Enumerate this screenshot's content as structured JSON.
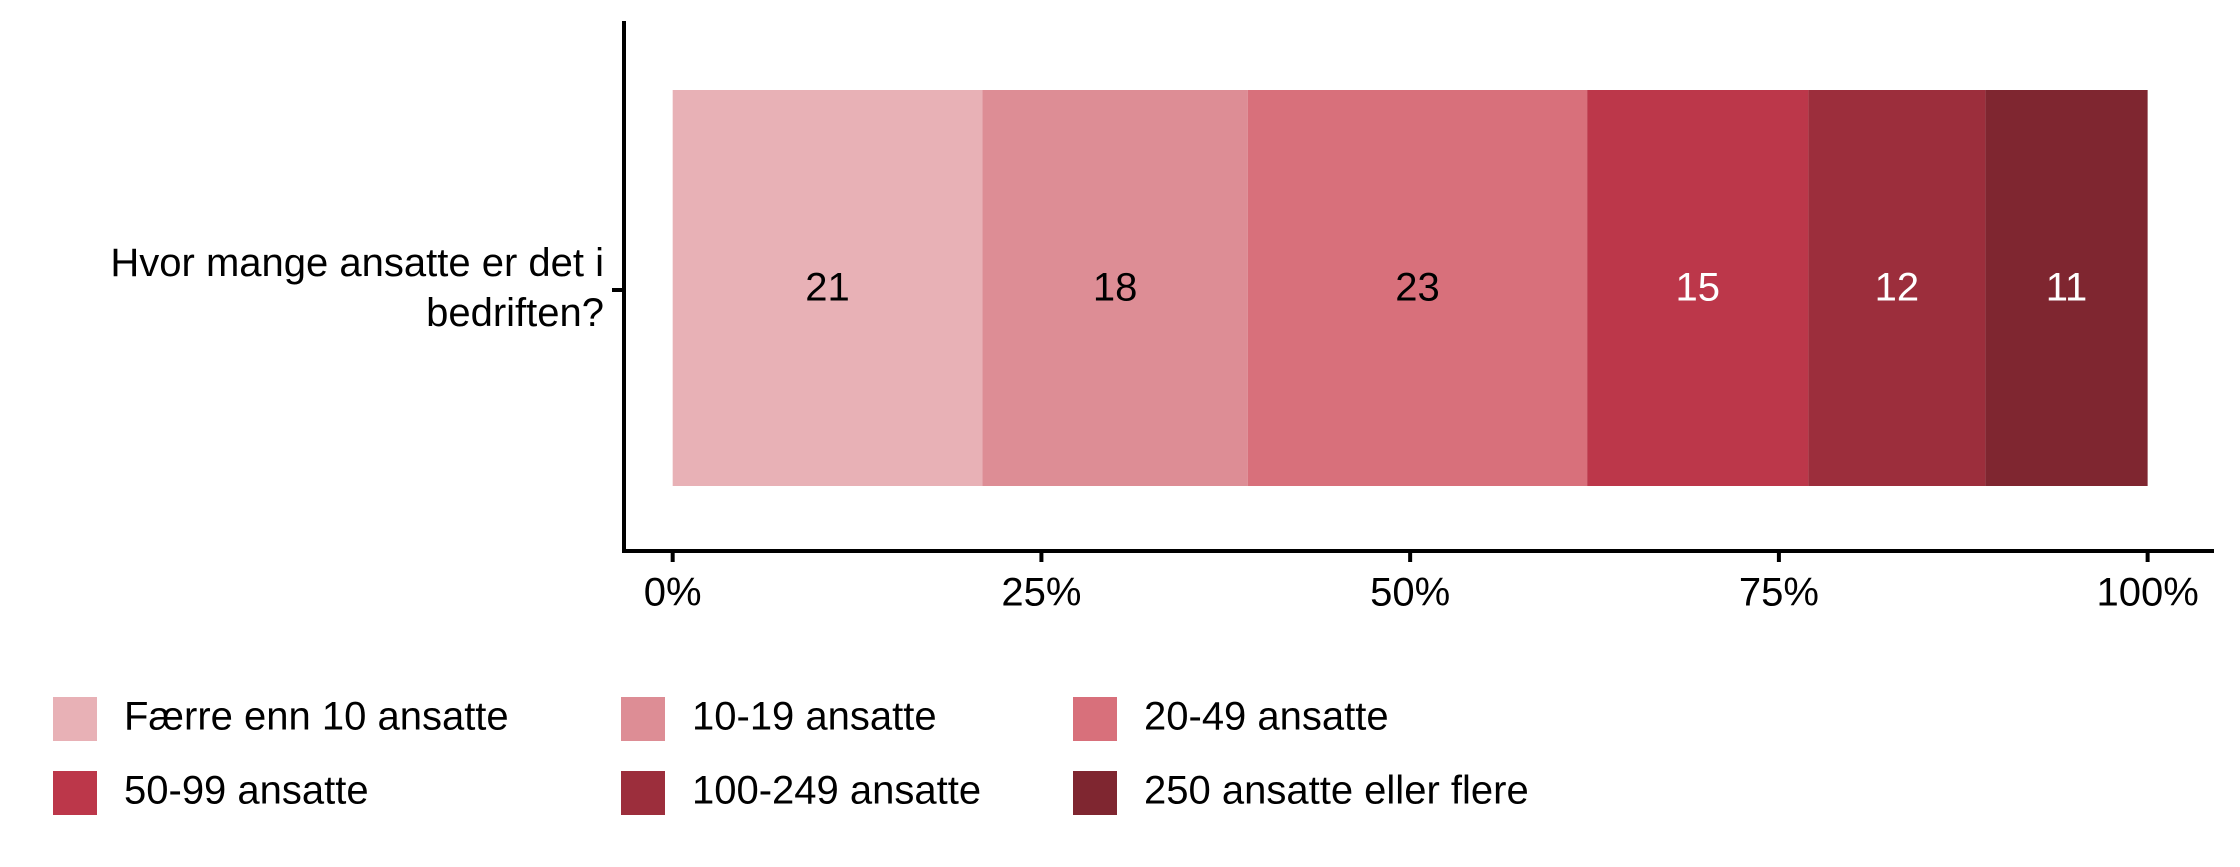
{
  "chart_data": {
    "type": "stacked_bar_horizontal",
    "categories": [
      "Hvor mange ansatte er det i bedriften?"
    ],
    "series": [
      {
        "name": "Færre enn 10 ansatte",
        "color": "#e8b1b6",
        "label_color": "#000000",
        "values": [
          21
        ]
      },
      {
        "name": "10-19 ansatte",
        "color": "#dd8d95",
        "label_color": "#000000",
        "values": [
          18
        ]
      },
      {
        "name": "20-49 ansatte",
        "color": "#d8707b",
        "label_color": "#000000",
        "values": [
          23
        ]
      },
      {
        "name": "50-99 ansatte",
        "color": "#bc374a",
        "label_color": "#ffffff",
        "values": [
          15
        ]
      },
      {
        "name": "100-249 ansatte",
        "color": "#9c2e3c",
        "label_color": "#ffffff",
        "values": [
          12
        ]
      },
      {
        "name": "250 ansatte eller flere",
        "color": "#7f2630",
        "label_color": "#ffffff",
        "values": [
          11
        ]
      }
    ],
    "xlim": [
      -3.3,
      104.5
    ],
    "xticks": [
      {
        "value": 0,
        "label": "0%"
      },
      {
        "value": 25,
        "label": "25%"
      },
      {
        "value": 50,
        "label": "50%"
      },
      {
        "value": 75,
        "label": "75%"
      },
      {
        "value": 100,
        "label": "100%"
      }
    ],
    "legend": "bottom"
  }
}
